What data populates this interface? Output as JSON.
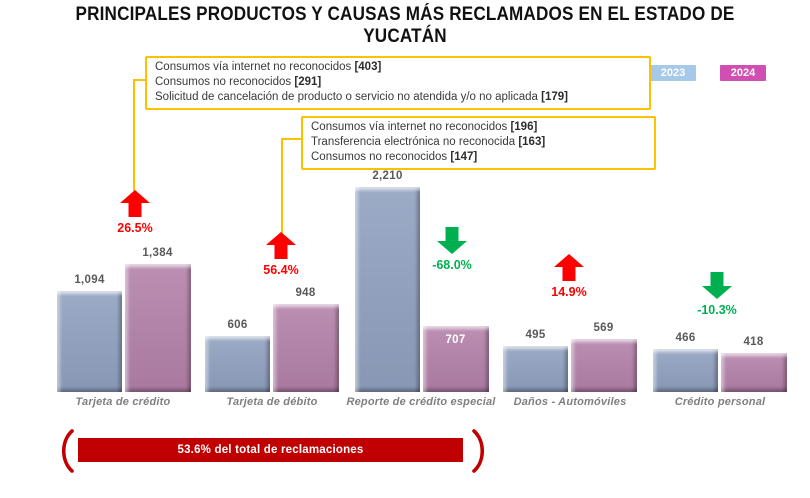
{
  "title": "PRINCIPALES PRODUCTOS Y CAUSAS MÁS RECLAMADOS EN EL ESTADO DE YUCATÁN",
  "legend": {
    "items": [
      {
        "label": "2023",
        "color": "#a6c9ea"
      },
      {
        "label": "2024",
        "color": "#d14fb2"
      }
    ]
  },
  "colors": {
    "bar_2023": "#8e9fbe",
    "bar_2024": "#b27fa8",
    "box_border": "#ffc000",
    "increase": "#fe0000",
    "decrease": "#00b050",
    "banner": "#c00000",
    "value_label": "#595959",
    "category_label": "#7f7f7f"
  },
  "cause_boxes": [
    {
      "target": "Tarjeta de crédito",
      "items": [
        {
          "text": "Consumos vía internet no reconocidos ",
          "count": "[403]"
        },
        {
          "text": "Consumos no reconocidos ",
          "count": "[291]"
        },
        {
          "text": "Solicitud de cancelación de producto o servicio no atendida y/o no aplicada ",
          "count": "[179]"
        }
      ]
    },
    {
      "target": "Tarjeta de débito",
      "items": [
        {
          "text": "Consumos vía internet no reconocidos ",
          "count": "[196]"
        },
        {
          "text": "Transferencia electrónica no reconocida ",
          "count": "[163]"
        },
        {
          "text": "Consumos no reconocidos ",
          "count": "[147]"
        }
      ]
    }
  ],
  "chart_data": {
    "type": "bar",
    "categories": [
      "Tarjeta de crédito",
      "Tarjeta de débito",
      "Reporte de crédito especial",
      "Daños - Automóviles",
      "Crédito personal"
    ],
    "series": [
      {
        "name": "2023",
        "values": [
          1094,
          606,
          2210,
          495,
          466
        ]
      },
      {
        "name": "2024",
        "values": [
          1384,
          948,
          707,
          569,
          418
        ]
      }
    ],
    "value_labels": [
      [
        "1,094",
        "606",
        "2,210",
        "495",
        "466"
      ],
      [
        "1,384",
        "948",
        "707",
        "569",
        "418"
      ]
    ],
    "changes": [
      {
        "value": "26.5%",
        "direction": "up"
      },
      {
        "value": "56.4%",
        "direction": "up"
      },
      {
        "value": "-68.0%",
        "direction": "down"
      },
      {
        "value": "14.9%",
        "direction": "up"
      },
      {
        "value": "-10.3%",
        "direction": "down"
      }
    ],
    "ylim": [
      0,
      2210
    ],
    "grid": false,
    "legend_position": "top-right",
    "title": "",
    "xlabel": "",
    "ylabel": ""
  },
  "footer": {
    "banner_text": "53.6% del total de reclamaciones"
  }
}
